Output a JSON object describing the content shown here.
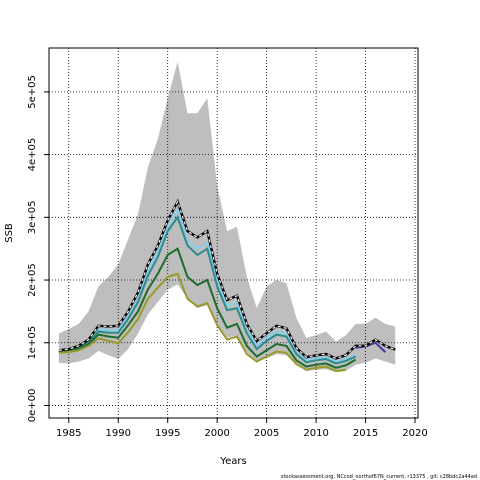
{
  "chart_data": {
    "type": "line",
    "xlabel": "Years",
    "ylabel": "SSB",
    "xlim": [
      1983,
      2020.3
    ],
    "ylim": [
      -20000,
      570000
    ],
    "x_ticks": [
      1985,
      1990,
      1995,
      2000,
      2005,
      2010,
      2015,
      2020
    ],
    "y_ticks": [
      0,
      100000,
      200000,
      300000,
      400000,
      500000
    ],
    "y_tick_labels": [
      "0e+00",
      "1e+05",
      "2e+05",
      "3e+05",
      "4e+05",
      "5e+05"
    ],
    "grid": true,
    "grid_style": "dotted",
    "footer": "stockassessment.org, NCcod_northof67N_current, r13375 , git: c28bdc2a44ad",
    "confidence_band": {
      "color": "#bebebe",
      "x": [
        1984,
        1985,
        1986,
        1987,
        1988,
        1989,
        1990,
        1991,
        1992,
        1993,
        1994,
        1995,
        1996,
        1997,
        1998,
        1999,
        2000,
        2001,
        2002,
        2003,
        2004,
        2005,
        2006,
        2007,
        2008,
        2009,
        2010,
        2011,
        2012,
        2013,
        2014,
        2015,
        2016,
        2017,
        2018
      ],
      "upper": [
        115000,
        122000,
        130000,
        150000,
        190000,
        205000,
        225000,
        265000,
        305000,
        380000,
        425000,
        490000,
        548000,
        466000,
        466000,
        490000,
        350000,
        278000,
        285000,
        205000,
        155000,
        190000,
        200000,
        195000,
        140000,
        108000,
        112000,
        118000,
        102000,
        112000,
        130000,
        130000,
        140000,
        130000,
        126000
      ],
      "lower": [
        68000,
        67000,
        70000,
        75000,
        87000,
        80000,
        74000,
        90000,
        115000,
        145000,
        165000,
        185000,
        193000,
        170000,
        155000,
        160000,
        130000,
        108000,
        112000,
        85000,
        70000,
        75000,
        82000,
        80000,
        65000,
        55000,
        57000,
        58000,
        53000,
        55000,
        65000,
        68000,
        75000,
        70000,
        65000
      ]
    },
    "series": [
      {
        "color": "#000000",
        "dashed": true,
        "x": [
          1984,
          1985,
          1986,
          1987,
          1988,
          1989,
          1990,
          1991,
          1992,
          1993,
          1994,
          1995,
          1996,
          1997,
          1998,
          1999,
          2000,
          2001,
          2002,
          2003,
          2004,
          2005,
          2006,
          2007,
          2008,
          2009,
          2010,
          2011,
          2012,
          2013,
          2014,
          2015,
          2016,
          2017,
          2018
        ],
        "y": [
          88000,
          90000,
          95000,
          105000,
          127000,
          126000,
          127000,
          150000,
          180000,
          225000,
          255000,
          295000,
          325000,
          278000,
          268000,
          278000,
          210000,
          168000,
          175000,
          130000,
          103000,
          115000,
          127000,
          123000,
          92000,
          77000,
          80000,
          82000,
          75000,
          80000,
          95000,
          95000,
          105000,
          95000,
          89000
        ]
      },
      {
        "color": "#87ceeb",
        "x": [
          1984,
          1985,
          1986,
          1987,
          1988,
          1989,
          1990,
          1991,
          1992,
          1993,
          1994,
          1995,
          1996,
          1997,
          1998,
          1999,
          2000,
          2001,
          2002,
          2003,
          2004,
          2005,
          2006,
          2007,
          2008,
          2009,
          2010,
          2011,
          2012,
          2013,
          2014
        ],
        "y": [
          87000,
          88000,
          93000,
          103000,
          122000,
          120000,
          120000,
          143000,
          170000,
          215000,
          245000,
          285000,
          312000,
          262000,
          250000,
          260000,
          200000,
          160000,
          163000,
          120000,
          96000,
          108000,
          118000,
          115000,
          85000,
          72000,
          75000,
          77000,
          70000,
          74000,
          80000
        ]
      },
      {
        "color": "#2e8b8b",
        "x": [
          1984,
          1985,
          1986,
          1987,
          1988,
          1989,
          1990,
          1991,
          1992,
          1993,
          1994,
          1995,
          1996,
          1997,
          1998,
          1999,
          2000,
          2001,
          2002,
          2003,
          2004,
          2005,
          2006,
          2007,
          2008,
          2009,
          2010,
          2011,
          2012,
          2013,
          2014
        ],
        "y": [
          86000,
          87000,
          92000,
          101000,
          118000,
          116000,
          116000,
          138000,
          165000,
          207000,
          237000,
          278000,
          300000,
          255000,
          240000,
          250000,
          190000,
          152000,
          155000,
          115000,
          90000,
          103000,
          113000,
          110000,
          82000,
          69000,
          72000,
          74000,
          67000,
          71000,
          78000
        ]
      },
      {
        "color": "#1e6b2e",
        "x": [
          1984,
          1985,
          1986,
          1987,
          1988,
          1989,
          1990,
          1991,
          1992,
          1993,
          1994,
          1995,
          1996,
          1997,
          1998,
          1999,
          2000,
          2001,
          2002,
          2003,
          2004,
          2005,
          2006,
          2007,
          2008,
          2009,
          2010,
          2011,
          2012,
          2013,
          2014
        ],
        "y": [
          85000,
          86000,
          90000,
          98000,
          113000,
          110000,
          108000,
          128000,
          150000,
          185000,
          210000,
          240000,
          250000,
          205000,
          192000,
          200000,
          155000,
          124000,
          130000,
          95000,
          78000,
          88000,
          98000,
          95000,
          72000,
          62000,
          65000,
          67000,
          60000,
          64000,
          73000
        ]
      },
      {
        "color": "#9a9a2a",
        "x": [
          1984,
          1985,
          1986,
          1987,
          1988,
          1989,
          1990,
          1991,
          1992,
          1993,
          1994,
          1995,
          1996,
          1997,
          1998,
          1999,
          2000,
          2001,
          2002,
          2003,
          2004,
          2005,
          2006,
          2007,
          2008,
          2009,
          2010,
          2011,
          2012,
          2013
        ],
        "y": [
          84000,
          85000,
          88000,
          95000,
          107000,
          103000,
          99000,
          117000,
          138000,
          170000,
          188000,
          205000,
          210000,
          170000,
          158000,
          163000,
          128000,
          105000,
          110000,
          82000,
          70000,
          78000,
          86000,
          84000,
          66000,
          57000,
          60000,
          62000,
          55000,
          57000
        ]
      },
      {
        "color": "#4a3aa0",
        "x": [
          2014,
          2015,
          2016,
          2017
        ],
        "y": [
          92000,
          94000,
          100000,
          85000
        ]
      }
    ]
  }
}
